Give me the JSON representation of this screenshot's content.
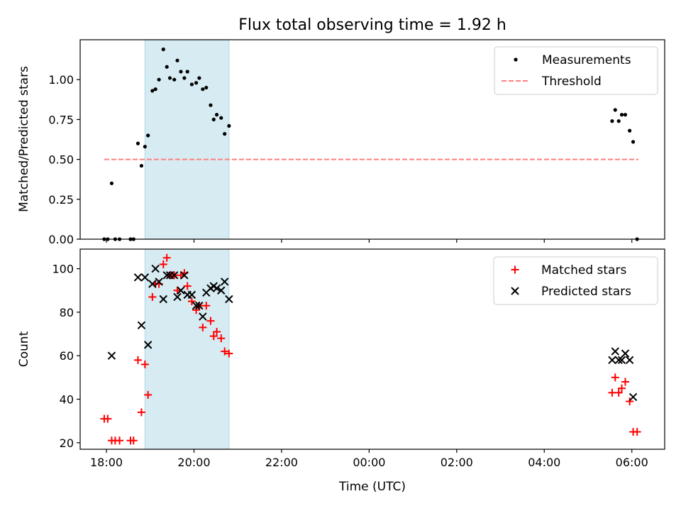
{
  "title": "Flux total observing time = 1.92 h",
  "xaxis": {
    "label": "Time (UTC)",
    "ticks": [
      {
        "x": 18.0,
        "label": "18:00"
      },
      {
        "x": 20.0,
        "label": "20:00"
      },
      {
        "x": 22.0,
        "label": "22:00"
      },
      {
        "x": 24.0,
        "label": "00:00"
      },
      {
        "x": 26.0,
        "label": "02:00"
      },
      {
        "x": 28.0,
        "label": "04:00"
      },
      {
        "x": 30.0,
        "label": "06:00"
      }
    ]
  },
  "chart_data": [
    {
      "type": "scatter",
      "ylabel": "Matched/Predicted stars",
      "xlim": [
        17.4,
        30.75
      ],
      "ylim": [
        0.0,
        1.25
      ],
      "yticks": [
        {
          "y": 0.0,
          "label": "0.00"
        },
        {
          "y": 0.25,
          "label": "0.25"
        },
        {
          "y": 0.5,
          "label": "0.50"
        },
        {
          "y": 0.75,
          "label": "0.75"
        },
        {
          "y": 1.0,
          "label": "1.00"
        }
      ],
      "shaded_region": {
        "x_start": 18.88,
        "x_end": 20.8,
        "color": "#add8e6"
      },
      "legend": {
        "position": "top-right",
        "entries": [
          "Measurements",
          "Threshold"
        ]
      },
      "series": [
        {
          "name": "Measurements",
          "marker": "dot",
          "color": "#000000",
          "points": [
            [
              17.95,
              0.0
            ],
            [
              18.03,
              0.0
            ],
            [
              18.12,
              0.35
            ],
            [
              18.2,
              0.0
            ],
            [
              18.3,
              0.0
            ],
            [
              18.55,
              0.0
            ],
            [
              18.62,
              0.0
            ],
            [
              18.72,
              0.6
            ],
            [
              18.8,
              0.46
            ],
            [
              18.88,
              0.58
            ],
            [
              18.95,
              0.65
            ],
            [
              19.05,
              0.93
            ],
            [
              19.12,
              0.94
            ],
            [
              19.2,
              1.0
            ],
            [
              19.3,
              1.19
            ],
            [
              19.38,
              1.08
            ],
            [
              19.45,
              1.01
            ],
            [
              19.55,
              1.0
            ],
            [
              19.62,
              1.12
            ],
            [
              19.7,
              1.05
            ],
            [
              19.78,
              1.01
            ],
            [
              19.85,
              1.05
            ],
            [
              19.95,
              0.97
            ],
            [
              20.05,
              0.98
            ],
            [
              20.12,
              1.01
            ],
            [
              20.2,
              0.94
            ],
            [
              20.28,
              0.95
            ],
            [
              20.38,
              0.84
            ],
            [
              20.45,
              0.75
            ],
            [
              20.52,
              0.78
            ],
            [
              20.62,
              0.76
            ],
            [
              20.7,
              0.66
            ],
            [
              20.8,
              0.71
            ],
            [
              29.55,
              0.74
            ],
            [
              29.62,
              0.81
            ],
            [
              29.7,
              0.74
            ],
            [
              29.77,
              0.78
            ],
            [
              29.85,
              0.78
            ],
            [
              29.95,
              0.68
            ],
            [
              30.03,
              0.61
            ],
            [
              30.12,
              0.0
            ]
          ]
        },
        {
          "name": "Threshold",
          "style": "dashed",
          "color": "#ff7f7f",
          "points": [
            [
              17.95,
              0.5
            ],
            [
              30.15,
              0.5
            ]
          ]
        }
      ]
    },
    {
      "type": "scatter",
      "ylabel": "Count",
      "xlim": [
        17.4,
        30.75
      ],
      "ylim": [
        17,
        109
      ],
      "yticks": [
        {
          "y": 20,
          "label": "20"
        },
        {
          "y": 40,
          "label": "40"
        },
        {
          "y": 60,
          "label": "60"
        },
        {
          "y": 80,
          "label": "80"
        },
        {
          "y": 100,
          "label": "100"
        }
      ],
      "shaded_region": {
        "x_start": 18.88,
        "x_end": 20.8,
        "color": "#add8e6"
      },
      "legend": {
        "position": "top-right",
        "entries": [
          "Matched stars",
          "Predicted stars"
        ]
      },
      "series": [
        {
          "name": "Matched stars",
          "marker": "plus",
          "color": "#ff0000",
          "points": [
            [
              17.95,
              31
            ],
            [
              18.03,
              31
            ],
            [
              18.12,
              21
            ],
            [
              18.2,
              21
            ],
            [
              18.3,
              21
            ],
            [
              18.55,
              21
            ],
            [
              18.62,
              21
            ],
            [
              18.72,
              58
            ],
            [
              18.8,
              34
            ],
            [
              18.88,
              56
            ],
            [
              18.95,
              42
            ],
            [
              19.05,
              87
            ],
            [
              19.12,
              93
            ],
            [
              19.2,
              93
            ],
            [
              19.3,
              102
            ],
            [
              19.38,
              105
            ],
            [
              19.45,
              97
            ],
            [
              19.55,
              97
            ],
            [
              19.62,
              90
            ],
            [
              19.7,
              97
            ],
            [
              19.78,
              98
            ],
            [
              19.85,
              92
            ],
            [
              19.95,
              85
            ],
            [
              20.05,
              81
            ],
            [
              20.12,
              83
            ],
            [
              20.2,
              73
            ],
            [
              20.28,
              83
            ],
            [
              20.38,
              76
            ],
            [
              20.45,
              69
            ],
            [
              20.52,
              71
            ],
            [
              20.62,
              68
            ],
            [
              20.7,
              62
            ],
            [
              20.8,
              61
            ],
            [
              29.55,
              43
            ],
            [
              29.62,
              50
            ],
            [
              29.7,
              43
            ],
            [
              29.77,
              45
            ],
            [
              29.85,
              48
            ],
            [
              29.95,
              39
            ],
            [
              30.03,
              25
            ],
            [
              30.12,
              25
            ]
          ]
        },
        {
          "name": "Predicted stars",
          "marker": "x",
          "color": "#000000",
          "points": [
            [
              18.12,
              60
            ],
            [
              18.72,
              96
            ],
            [
              18.8,
              74
            ],
            [
              18.88,
              96
            ],
            [
              18.95,
              65
            ],
            [
              19.05,
              93
            ],
            [
              19.12,
              100
            ],
            [
              19.2,
              94
            ],
            [
              19.3,
              86
            ],
            [
              19.38,
              97
            ],
            [
              19.45,
              97
            ],
            [
              19.55,
              97
            ],
            [
              19.62,
              87
            ],
            [
              19.7,
              90
            ],
            [
              19.78,
              97
            ],
            [
              19.85,
              88
            ],
            [
              19.95,
              88
            ],
            [
              20.05,
              83
            ],
            [
              20.12,
              83
            ],
            [
              20.2,
              78
            ],
            [
              20.28,
              89
            ],
            [
              20.38,
              91
            ],
            [
              20.45,
              92
            ],
            [
              20.52,
              91
            ],
            [
              20.62,
              90
            ],
            [
              20.7,
              94
            ],
            [
              20.8,
              86
            ],
            [
              29.55,
              58
            ],
            [
              29.62,
              62
            ],
            [
              29.7,
              58
            ],
            [
              29.77,
              58
            ],
            [
              29.85,
              61
            ],
            [
              29.95,
              58
            ],
            [
              30.03,
              41
            ]
          ]
        }
      ]
    }
  ]
}
